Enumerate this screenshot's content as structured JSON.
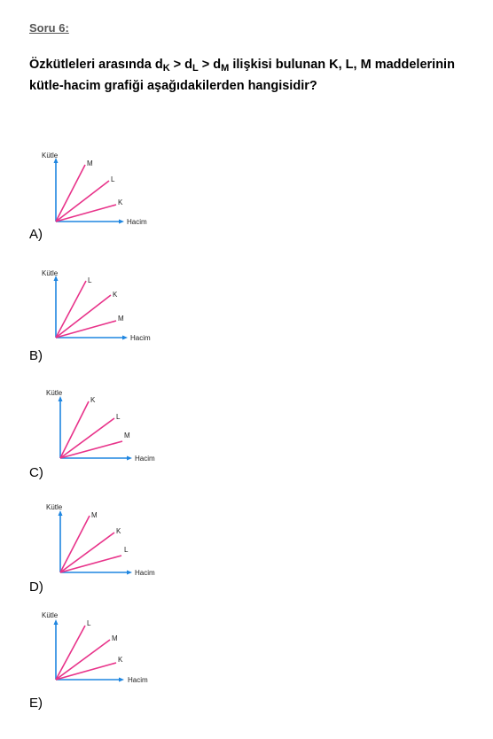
{
  "question": {
    "title": "Soru 6:",
    "text": {
      "prefix": "Özkütleleri arasında d",
      "s1": "K",
      "gt1": " > d",
      "s2": "L",
      "gt2": " > d",
      "s3": "M",
      "rest": " ilişkisi bulunan K, L, M maddelerinin kütle-hacim grafiği aşağıdakilerden hangisidir?"
    }
  },
  "colors": {
    "axis": "#1f86e0",
    "line": "#e8338a"
  },
  "axis_labels": {
    "y": "Kütle",
    "x": "Hacim"
  },
  "options": [
    {
      "label": "A)",
      "lines": [
        "M",
        "L",
        "K"
      ]
    },
    {
      "label": "B)",
      "lines": [
        "L",
        "K",
        "M"
      ]
    },
    {
      "label": "C)",
      "lines": [
        "K",
        "L",
        "M"
      ]
    },
    {
      "label": "D)",
      "lines": [
        "M",
        "K",
        "L"
      ]
    },
    {
      "label": "E)",
      "lines": [
        "L",
        "M",
        "K"
      ]
    }
  ]
}
